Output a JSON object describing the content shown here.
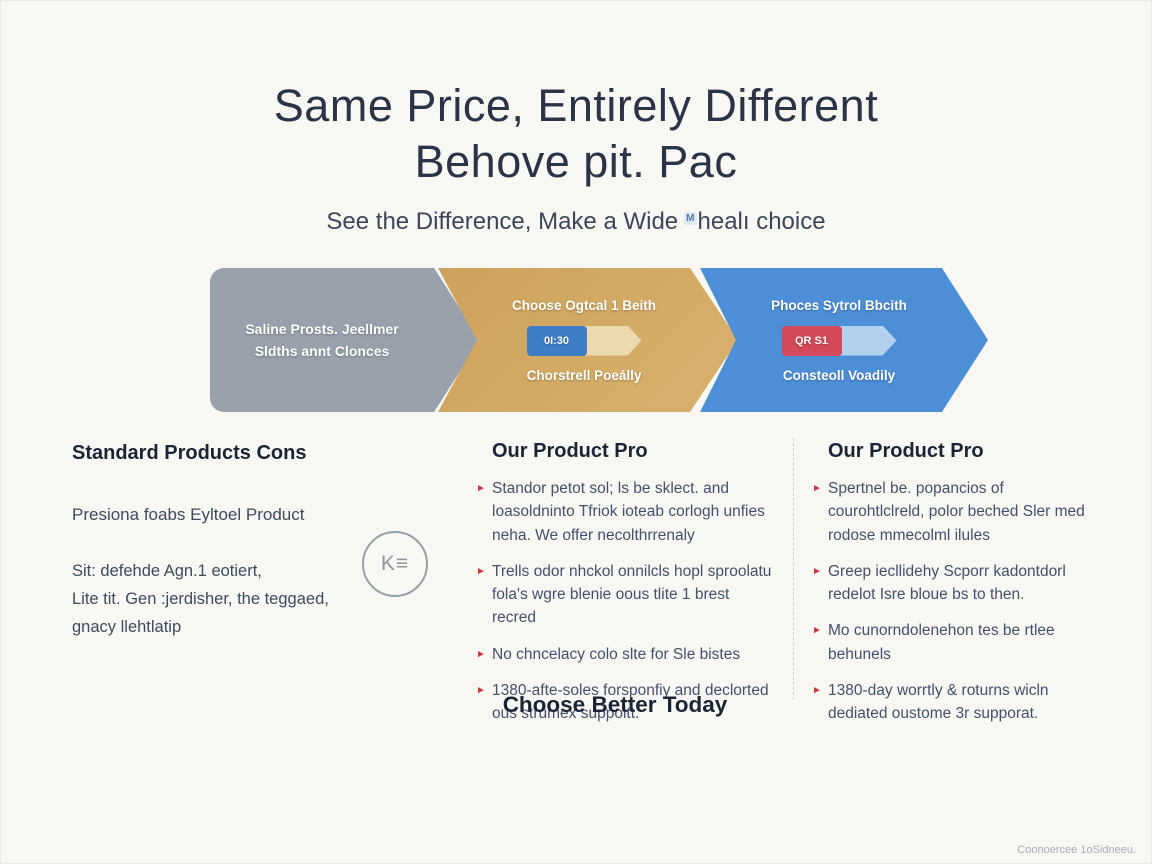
{
  "ui": {
    "bullet_marker": "►"
  },
  "page": {
    "title_line1": "Same Price, Entirely Different",
    "title_line2": "Behove pit. Pac",
    "subtitle_prefix": "See the Difference, Make a Wide",
    "subtitle_chip": "M",
    "subtitle_suffix": "healı choice",
    "footer_note": "Coonoercee 1oSidneeu."
  },
  "banner": {
    "gray": {
      "line1": "Saline Prosts. Jeellmer",
      "line2": "Sldths annt Clonces",
      "color": "#99a2ac"
    },
    "gold": {
      "top_label": "Choose Ogtcal 1 Beith",
      "badge": "0I:30",
      "bottom_label": "Chorstrell Poeálly",
      "color": "#d2ab64",
      "badge_color": "#3d7ec7",
      "tail_color": "#ecd9ad"
    },
    "blue": {
      "top_label": "Phoces Sytrol Bbcith",
      "badge": "QR S1",
      "bottom_label": "Consteoll Voadily",
      "color": "#4d8fd6",
      "badge_color": "#d4495a",
      "tail_color": "#b3d0ef"
    }
  },
  "columns": {
    "left": {
      "heading": "Standard Products Cons",
      "subheading": "Presiona foabs Eyltoel Product",
      "paragraph_lines": [
        "Sit: defehde Agn.1 eotiert,",
        "Lite tit. Gen :jerdisher, the teggaed,",
        "gnacy llehtlatip"
      ],
      "icon_label": "K≡"
    },
    "middle": {
      "heading": "Our Product Pro",
      "bullets": [
        "Standor petot sol; ls be sklect. and loasoldninto Tfriok ioteab corlogh unfies neha. We offer necolthrrenaly",
        "Trells odor nhckol onnilcls hopl sproolatu fola's wgre blenie oous tlite 1 brest recred",
        "No chncelacy colo slte for Sle bistes",
        "1380-afte-soles forsponfiy and declorted ous strumex suppoitt."
      ],
      "cta": "Choose Better Today"
    },
    "right": {
      "heading": "Our Product Pro",
      "bullets": [
        "Spertnel be. popancios of courohtlclreld, polor beched Sler med rodose mmecolml ilules",
        "Greep iecllidehy Scporr kadontdorl redelot Isre bloue bs to then.",
        "Mo cunorndolenehon tes be rtlee behunels",
        "1380-day worrtly & roturns wicln dediated oustome 3r supporat."
      ]
    }
  }
}
